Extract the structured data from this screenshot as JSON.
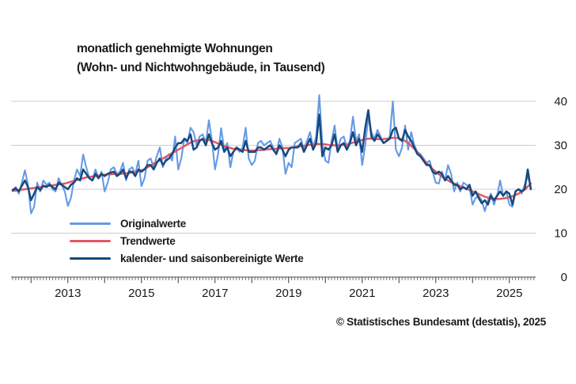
{
  "title": {
    "line1": "monatlich genehmigte Wohnungen",
    "line2": "(Wohn- und Nichtwohngebäude, in Tausend)"
  },
  "source": "© Statistisches Bundesamt (destatis), 2025",
  "colors": {
    "original": "#659AE4",
    "trend": "#E25764",
    "adjusted": "#17497E",
    "grid": "#cccccc",
    "axis": "#444444",
    "text": "#1a1a1a"
  },
  "chart_data": {
    "type": "line",
    "title": "monatlich genehmigte Wohnungen (Wohn- und Nichtwohngebäude, in Tausend)",
    "unit": "Tausend Wohnungen",
    "x_start": "2011-07",
    "x_end": "2025-08",
    "x_frequency": "monthly",
    "ylim": [
      0,
      40
    ],
    "y_ticks": [
      0,
      10,
      20,
      30,
      40
    ],
    "x_tick_years": [
      "2013",
      "2015",
      "2017",
      "2019",
      "2021",
      "2023",
      "2025"
    ],
    "grid": "horizontal",
    "legend_position": "inside-bottom-left",
    "series": [
      {
        "name": "Originalwerte",
        "color": "#659AE4",
        "values": [
          19.8,
          20.5,
          19,
          21.5,
          24.3,
          21,
          14.5,
          16,
          21.5,
          19.5,
          22,
          21,
          21.5,
          20,
          19.5,
          22.5,
          21,
          19.5,
          16.2,
          18,
          22,
          24.5,
          23,
          27.9,
          25,
          22.5,
          22,
          24.5,
          22.5,
          24,
          19.5,
          21.5,
          24.5,
          25,
          23.5,
          24,
          26,
          22,
          24.5,
          25,
          23.5,
          26.5,
          20.7,
          22.5,
          26.5,
          27,
          25,
          27.5,
          29.5,
          25,
          27,
          28,
          26.5,
          32,
          24.5,
          27,
          31.5,
          30.5,
          34,
          33,
          30,
          32,
          32.5,
          30.5,
          35.7,
          31,
          24.5,
          28,
          33.9,
          29,
          30.5,
          25,
          28.5,
          29.5,
          28.5,
          29.5,
          34,
          27,
          25.5,
          26.5,
          30.5,
          31,
          30,
          30.5,
          31,
          29.5,
          28,
          31.5,
          29.5,
          23.5,
          26,
          25,
          30.5,
          31,
          31.5,
          29,
          31,
          33,
          29.5,
          32,
          41.4,
          30.5,
          26.5,
          26,
          31,
          34.5,
          29,
          31.5,
          32,
          29.5,
          31,
          36.5,
          31,
          32.5,
          25.5,
          30,
          36.5,
          33,
          31.5,
          33.5,
          32,
          30.5,
          31,
          32,
          40,
          29,
          27.5,
          29.5,
          34.5,
          29,
          33,
          30,
          28.5,
          28,
          27,
          26,
          26.5,
          24,
          21.5,
          21.3,
          24,
          22,
          25.5,
          23.5,
          19.5,
          21.5,
          19.5,
          21.5,
          21,
          20.5,
          16.5,
          18,
          18.5,
          17.5,
          15,
          17.5,
          19,
          16.5,
          18.5,
          22,
          18.5,
          19.5,
          16.5,
          16,
          19.5,
          20,
          19,
          21,
          23,
          20.5
        ]
      },
      {
        "name": "Trendwerte",
        "color": "#E25764",
        "values": [
          19.6,
          19.7,
          19.8,
          19.9,
          20,
          20.1,
          20.2,
          20.3,
          20.4,
          20.5,
          20.6,
          20.7,
          20.8,
          20.9,
          21,
          21.1,
          21.2,
          21.3,
          21.5,
          21.7,
          21.9,
          22.1,
          22.3,
          22.5,
          22.7,
          22.8,
          22.9,
          23,
          23.1,
          23.2,
          23.3,
          23.4,
          23.4,
          23.5,
          23.5,
          23.5,
          23.6,
          23.6,
          23.7,
          23.8,
          23.9,
          24.1,
          24.3,
          24.6,
          25,
          25.4,
          25.8,
          26.2,
          26.6,
          27,
          27.4,
          27.8,
          28.2,
          28.6,
          29,
          29.4,
          29.8,
          30.2,
          30.6,
          30.9,
          31.1,
          31.2,
          31.3,
          31.3,
          31.2,
          31,
          30.7,
          30.4,
          30.1,
          29.8,
          29.6,
          29.4,
          29.2,
          29.1,
          29,
          28.9,
          28.9,
          28.8,
          28.8,
          28.8,
          28.9,
          28.9,
          29,
          29.1,
          29.1,
          29.2,
          29.2,
          29.3,
          29.3,
          29.4,
          29.4,
          29.5,
          29.6,
          29.7,
          29.8,
          29.9,
          30,
          30.1,
          30.2,
          30.3,
          30.3,
          30.3,
          30.2,
          30.1,
          30,
          30,
          30,
          30,
          30.1,
          30.2,
          30.4,
          30.6,
          30.8,
          31,
          31.2,
          31.4,
          31.5,
          31.5,
          31.5,
          31.4,
          31.4,
          31.4,
          31.5,
          31.6,
          31.7,
          31.7,
          31.6,
          31.3,
          31,
          30.5,
          29.9,
          29.2,
          28.4,
          27.6,
          26.8,
          26,
          25.3,
          24.6,
          24,
          23.4,
          22.9,
          22.4,
          22,
          21.6,
          21.3,
          21,
          20.7,
          20.4,
          20.1,
          19.8,
          19.5,
          19.2,
          18.9,
          18.6,
          18.3,
          18.1,
          17.9,
          17.8,
          17.8,
          17.8,
          17.9,
          18,
          18.2,
          18.4,
          18.7,
          19,
          19.4,
          19.9,
          20.6,
          21.3
        ]
      },
      {
        "name": "kalender- und saisonbereinigte Werte",
        "color": "#17497E",
        "values": [
          19.8,
          20.2,
          19.5,
          20.8,
          22,
          20.5,
          17.5,
          19,
          20.5,
          19.8,
          20.8,
          20.5,
          21,
          20.5,
          20,
          21.5,
          21,
          20.5,
          20,
          21,
          21.5,
          22.5,
          22,
          24.5,
          23.5,
          22.5,
          22,
          23.5,
          22.5,
          23.5,
          23,
          23.5,
          23.8,
          24,
          23,
          23.5,
          24.5,
          22.5,
          24,
          24,
          23,
          24.5,
          24,
          24.5,
          25.5,
          25.5,
          24.5,
          26,
          27,
          25.5,
          26.5,
          27,
          28,
          29.5,
          30.5,
          30.5,
          31.5,
          31,
          32.5,
          29,
          29.5,
          31,
          31.5,
          30,
          32.5,
          30.5,
          29,
          29.5,
          31,
          28.5,
          29.5,
          27.5,
          28.5,
          29.5,
          29,
          28.5,
          31,
          28.5,
          28.5,
          28.5,
          29.5,
          29.5,
          29,
          29.5,
          30,
          29,
          28,
          30,
          29,
          27.5,
          29,
          29.5,
          29.5,
          29.5,
          30.5,
          28.5,
          30,
          31.5,
          29,
          30.5,
          37,
          27.5,
          29.5,
          29,
          30,
          32.5,
          28.5,
          30,
          30.5,
          29,
          30.5,
          33,
          30,
          31.5,
          28.5,
          34,
          38,
          32,
          31,
          32.5,
          31.5,
          30.5,
          31,
          31.5,
          33.5,
          34,
          31.5,
          31,
          33.5,
          32,
          31,
          29.5,
          28,
          27.5,
          26.5,
          25.5,
          25.5,
          24,
          23.5,
          24,
          23.5,
          22,
          23,
          22,
          21,
          21,
          20,
          20.5,
          20,
          21,
          18.5,
          19.5,
          18,
          16.8,
          17.5,
          16.5,
          18.5,
          17.5,
          18.5,
          19.5,
          18.5,
          19.5,
          19,
          16.5,
          19.5,
          20,
          19.5,
          20,
          24.5,
          20
        ]
      }
    ]
  }
}
